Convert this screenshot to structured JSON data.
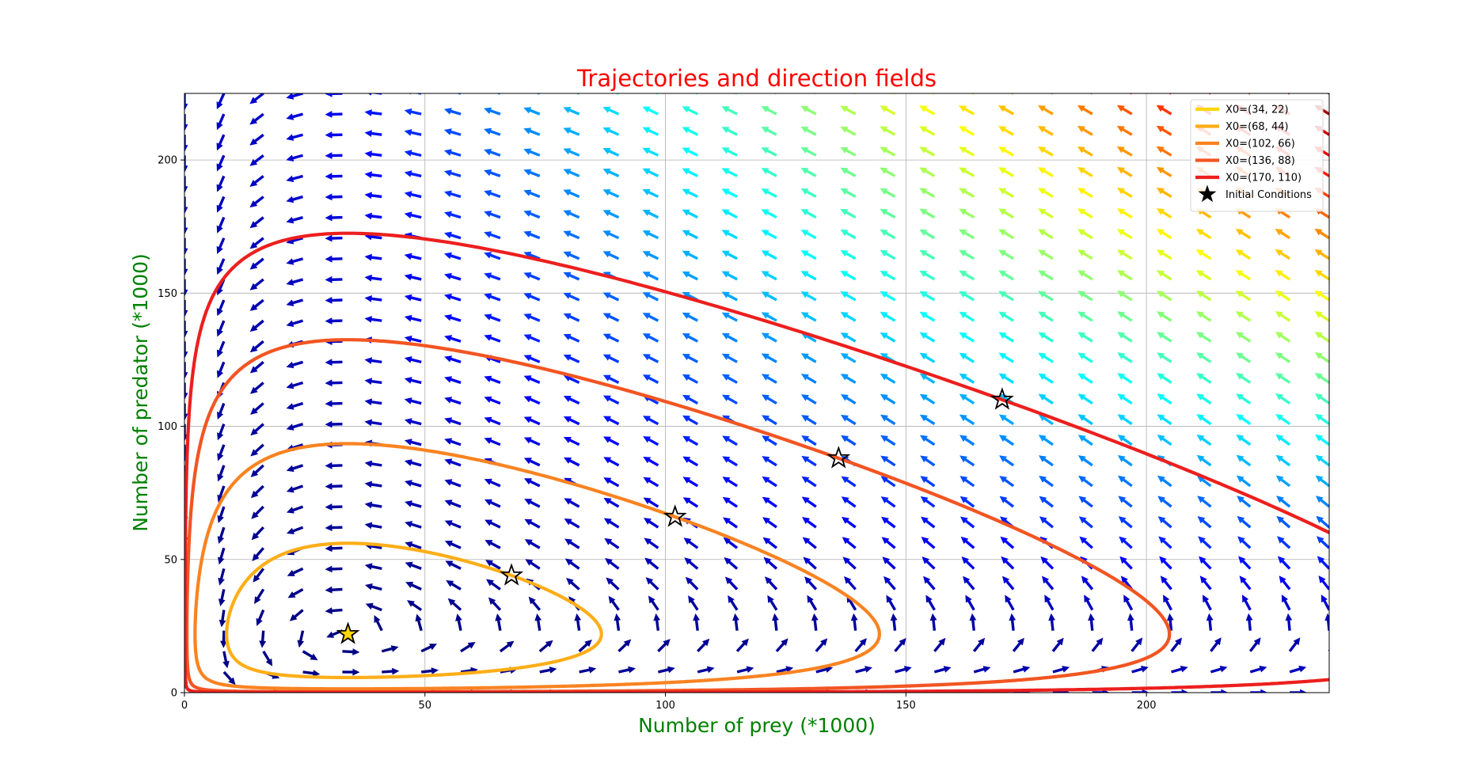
{
  "chart_data": {
    "type": "line",
    "title": "Trajectories and direction fields",
    "title_color": "#ff0000",
    "xlabel": "Number of prey (*1000)",
    "ylabel": "Number of predator (*1000)",
    "axis_label_color": "#008000",
    "xlim": [
      0,
      238
    ],
    "ylim": [
      0,
      225
    ],
    "xticks": [
      0,
      50,
      100,
      150,
      200
    ],
    "yticks": [
      0,
      50,
      100,
      150,
      200
    ],
    "grid": true,
    "legend_position": "top-right",
    "equilibrium": [
      34,
      22
    ],
    "series": [
      {
        "name": "X0=(34, 22)",
        "color": "#ffd60a",
        "x0": [
          34,
          22
        ]
      },
      {
        "name": "X0=(68, 44)",
        "color": "#fdae18",
        "x0": [
          68,
          44
        ]
      },
      {
        "name": "X0=(102, 66)",
        "color": "#f98321",
        "x0": [
          102,
          66
        ]
      },
      {
        "name": "X0=(136, 88)",
        "color": "#f25522",
        "x0": [
          136,
          88
        ]
      },
      {
        "name": "X0=(170, 110)",
        "color": "#ec1f1e",
        "x0": [
          170,
          110
        ]
      }
    ],
    "initial_conditions_label": "Initial Conditions",
    "initial_conditions_marker_color": "#000000",
    "direction_field": {
      "x_range": [
        0,
        238
      ],
      "y_range": [
        0,
        225
      ],
      "grid_points": 30,
      "colormap": "jet"
    }
  }
}
